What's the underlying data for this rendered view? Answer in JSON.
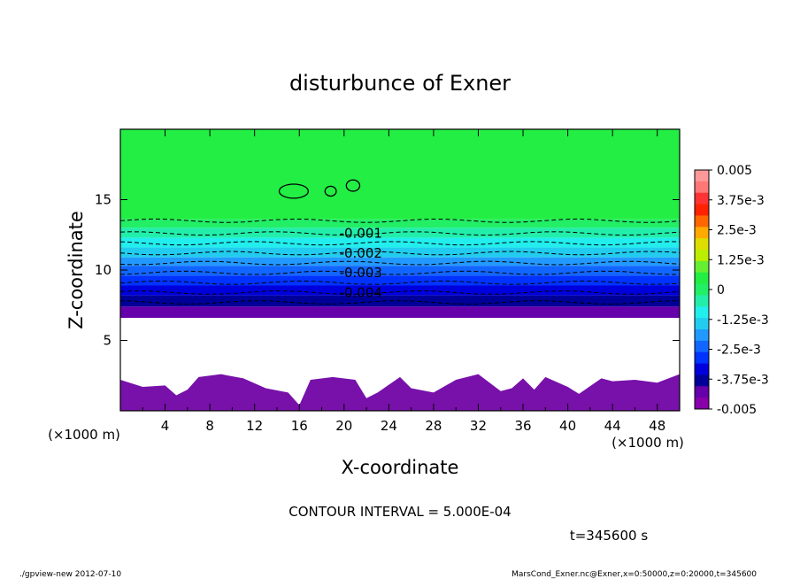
{
  "chart_data": {
    "type": "contour",
    "title": "disturbunce of Exner",
    "xlabel": "X-coordinate",
    "ylabel": "Z-coordinate",
    "x_unit_left": "(×1000 m)",
    "x_unit_right": "(×1000 m)",
    "xlim": [
      0,
      50
    ],
    "ylim": [
      0,
      20
    ],
    "x_ticks": [
      4,
      8,
      12,
      16,
      20,
      24,
      28,
      32,
      36,
      40,
      44,
      48
    ],
    "y_ticks": [
      5,
      10,
      15
    ],
    "contour_labels": [
      "-0.001",
      "-0.002",
      "-0.003",
      "-0.004"
    ],
    "contour_levels_z": [
      12.6,
      11.2,
      9.8,
      8.4
    ],
    "colorbar": {
      "labels": [
        "0.005",
        "3.75e-3",
        "2.5e-3",
        "1.25e-3",
        "0",
        "-1.25e-3",
        "-2.5e-3",
        "-3.75e-3",
        "-0.005"
      ],
      "colors": [
        "#ff9999",
        "#ff7777",
        "#ff3333",
        "#ff2200",
        "#ff6600",
        "#ffaa00",
        "#dddd00",
        "#bbee00",
        "#66ee33",
        "#22ee44",
        "#22ee66",
        "#22eeaa",
        "#22eeee",
        "#22ccee",
        "#2299ff",
        "#1166ff",
        "#0033ff",
        "#0000dd",
        "#000099",
        "#6600aa",
        "#8800aa"
      ]
    },
    "contour_interval_text": "CONTOUR INTERVAL = 5.000E-04",
    "time_text": "t=345600 s"
  },
  "footer": {
    "left": "./gpview-new   2012-07-10",
    "right": "MarsCond_Exner.nc@Exner,x=0:50000,z=0:20000,t=345600"
  }
}
